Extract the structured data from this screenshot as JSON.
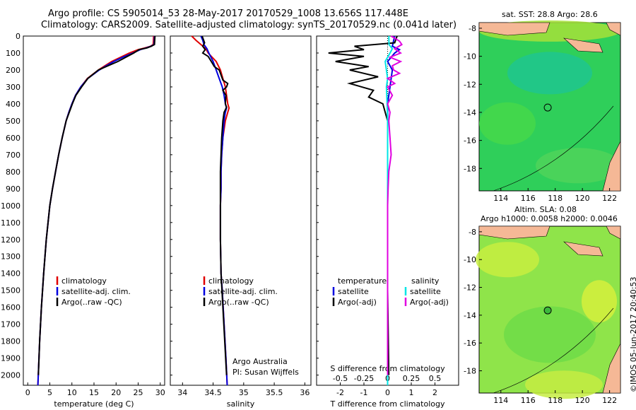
{
  "header": {
    "line1": "Argo profile: CS 5905014_53 28-May-2017 20170529_1008 13.656S 117.448E",
    "line2": "Climatology: CARS2009. Satellite-adjusted climatology: synTS_20170529.nc (0.041d later)"
  },
  "colors": {
    "climatology": "#e00000",
    "satellite": "#0000e0",
    "argo": "#000000",
    "sat_s": "#00e5e5",
    "argo_s": "#e000e0"
  },
  "depth_axis": {
    "ticks": [
      "0",
      "100",
      "200",
      "300",
      "400",
      "500",
      "600",
      "700",
      "800",
      "900",
      "1000",
      "1100",
      "1200",
      "1300",
      "1400",
      "1500",
      "1600",
      "1700",
      "1800",
      "1900",
      "2000"
    ],
    "ylim": [
      0,
      2060
    ]
  },
  "chart_data": [
    {
      "type": "line",
      "id": "temperature",
      "xlabel": "temperature (deg C)",
      "xlim": [
        -1,
        31
      ],
      "xticks": [
        0,
        5,
        10,
        15,
        20,
        25,
        30
      ],
      "xtick_labels": [
        "0",
        "5",
        "10",
        "15",
        "20",
        "25",
        "30"
      ],
      "legend": [
        "climatology",
        "satellite-adj. clim.",
        "Argo(..raw -QC)"
      ],
      "series": [
        {
          "name": "climatology",
          "depth": [
            0,
            50,
            60,
            70,
            80,
            100,
            125,
            150,
            175,
            200,
            250,
            300,
            350,
            400,
            450,
            500,
            600,
            700,
            800,
            900,
            1000,
            1200,
            1400,
            1600,
            1800,
            2060
          ],
          "values": [
            28.5,
            28.4,
            27.8,
            26.5,
            25.0,
            23.0,
            21.0,
            19.0,
            17.5,
            16.0,
            13.5,
            12.0,
            10.8,
            10.0,
            9.3,
            8.7,
            7.8,
            7.0,
            6.3,
            5.6,
            5.0,
            4.2,
            3.6,
            3.1,
            2.7,
            2.3
          ]
        },
        {
          "name": "satellite-adj. clim.",
          "depth": [
            0,
            50,
            60,
            70,
            80,
            100,
            125,
            150,
            175,
            200,
            250,
            300,
            350,
            400,
            450,
            500,
            600,
            700,
            800,
            900,
            1000,
            1200,
            1400,
            1600,
            1800,
            2060
          ],
          "values": [
            28.7,
            28.6,
            27.9,
            26.8,
            25.5,
            23.8,
            21.5,
            19.5,
            17.8,
            16.2,
            13.6,
            12.0,
            10.8,
            10.0,
            9.3,
            8.7,
            7.8,
            7.0,
            6.3,
            5.6,
            5.0,
            4.2,
            3.6,
            3.1,
            2.7,
            2.3
          ]
        },
        {
          "name": "Argo(..raw -QC)",
          "depth": [
            0,
            50,
            60,
            70,
            80,
            100,
            125,
            150,
            175,
            200,
            250,
            300,
            350,
            400,
            450,
            500,
            600,
            700,
            800,
            900,
            1000,
            1200,
            1400,
            1600,
            1800,
            2000
          ],
          "values": [
            28.8,
            28.7,
            28.0,
            27.0,
            25.2,
            24.0,
            22.2,
            20.4,
            18.2,
            16.0,
            13.6,
            12.2,
            10.9,
            10.1,
            9.4,
            8.7,
            7.8,
            7.0,
            6.3,
            5.6,
            5.0,
            4.2,
            3.6,
            3.1,
            2.7,
            2.4
          ]
        }
      ]
    },
    {
      "type": "line",
      "id": "salinity",
      "xlabel": "salinity",
      "xlim": [
        33.8,
        36.1
      ],
      "xticks": [
        34,
        34.5,
        35,
        35.5,
        36
      ],
      "xtick_labels": [
        "34",
        "34.5",
        "35",
        "35.5",
        "36"
      ],
      "legend": [
        "climatology",
        "satellite-adj. clim.",
        "Argo(..raw -QC)"
      ],
      "annotation": [
        "Argo Australia",
        "PI: Susan Wijffels"
      ],
      "series": [
        {
          "name": "climatology",
          "depth": [
            0,
            25,
            50,
            75,
            100,
            150,
            200,
            250,
            300,
            350,
            400,
            425,
            450,
            500,
            600,
            700,
            800,
            900,
            1000,
            1200,
            1400,
            1500,
            1700,
            1900,
            2060
          ],
          "values": [
            34.15,
            34.22,
            34.3,
            34.38,
            34.42,
            34.55,
            34.62,
            34.66,
            34.7,
            34.72,
            34.74,
            34.76,
            34.74,
            34.7,
            34.66,
            34.64,
            34.63,
            34.63,
            34.62,
            34.62,
            34.63,
            34.65,
            34.68,
            34.71,
            34.73
          ]
        },
        {
          "name": "satellite-adj. clim.",
          "depth": [
            0,
            25,
            50,
            75,
            100,
            150,
            200,
            250,
            300,
            350,
            400,
            425,
            450,
            500,
            600,
            700,
            800,
            900,
            1000,
            1200,
            1400,
            1500,
            1700,
            1900,
            2060
          ],
          "values": [
            34.3,
            34.33,
            34.35,
            34.4,
            34.43,
            34.5,
            34.55,
            34.6,
            34.65,
            34.68,
            34.7,
            34.72,
            34.7,
            34.68,
            34.66,
            34.64,
            34.63,
            34.63,
            34.62,
            34.62,
            34.63,
            34.65,
            34.68,
            34.71,
            34.73
          ]
        },
        {
          "name": "Argo(..raw -QC)",
          "depth": [
            0,
            40,
            60,
            80,
            100,
            120,
            150,
            180,
            200,
            230,
            260,
            280,
            300,
            320,
            350,
            400,
            420,
            450,
            500,
            600,
            700,
            800,
            900,
            1000,
            1200,
            1400,
            1600,
            1800,
            2000
          ],
          "values": [
            34.32,
            34.36,
            34.33,
            34.37,
            34.33,
            34.42,
            34.47,
            34.52,
            34.6,
            34.63,
            34.66,
            34.74,
            34.72,
            34.66,
            34.71,
            34.7,
            34.72,
            34.68,
            34.66,
            34.64,
            34.63,
            34.62,
            34.62,
            34.62,
            34.62,
            34.63,
            34.66,
            34.69,
            34.72
          ]
        }
      ]
    },
    {
      "type": "line",
      "id": "difference",
      "xlabel": "T difference from climatology",
      "top_label": "S difference from climatology",
      "xlim": [
        -3,
        3
      ],
      "xticks": [
        -2,
        -1,
        0,
        1,
        2
      ],
      "xtick_labels": [
        "-2",
        "-1",
        "0",
        "1",
        "2"
      ],
      "top_ticks": [
        -2,
        -1,
        0,
        1,
        2
      ],
      "top_tick_labels": [
        "-0.5",
        "-0.25",
        "0",
        "0.25",
        "0.5"
      ],
      "legend_headers": [
        "temperature",
        "salinity"
      ],
      "legend": [
        "satellite",
        "Argo(-adj)",
        "satellite",
        "Argo(-adj)"
      ],
      "series": [
        {
          "name": "T satellite",
          "depth": [
            0,
            60,
            80,
            100,
            150,
            200,
            300,
            400,
            500,
            600,
            800,
            1000,
            1500,
            2060
          ],
          "values": [
            0.3,
            0.2,
            0.5,
            0.3,
            0.0,
            0.2,
            0.1,
            0.0,
            0.0,
            0.0,
            0.0,
            0.0,
            0.0,
            0.0
          ]
        },
        {
          "name": "T Argo(-adj)",
          "depth": [
            0,
            40,
            60,
            80,
            100,
            120,
            150,
            180,
            200,
            240,
            280,
            320,
            360,
            400,
            450,
            500,
            600,
            700,
            800,
            1000,
            1500,
            2000
          ],
          "values": [
            0.4,
            0.3,
            -1.4,
            -1.0,
            -2.5,
            -1.0,
            -2.2,
            -0.8,
            -1.6,
            -0.4,
            -1.6,
            -0.6,
            -0.8,
            -0.2,
            -0.1,
            0.0,
            0.0,
            0.0,
            0.0,
            0.0,
            0.0,
            0.05
          ]
        },
        {
          "name": "S satellite",
          "depth": [
            0,
            50,
            75,
            100,
            150,
            200,
            250,
            300,
            400,
            500,
            600,
            800,
            1000,
            1500,
            2060
          ],
          "values": [
            0.05,
            0.06,
            0.2,
            0.1,
            -0.1,
            -0.05,
            0.0,
            -0.05,
            -0.02,
            0.0,
            0.0,
            0.0,
            0.0,
            0.0,
            0.0
          ]
        },
        {
          "name": "S Argo(-adj)",
          "depth": [
            0,
            30,
            50,
            75,
            100,
            125,
            150,
            175,
            200,
            220,
            250,
            280,
            300,
            350,
            400,
            450,
            500,
            600,
            700,
            800,
            900,
            1000,
            1200,
            2000
          ],
          "values": [
            0.15,
            0.5,
            0.6,
            0.3,
            0.55,
            0.1,
            0.55,
            0.2,
            0.25,
            0.5,
            0.0,
            0.3,
            0.0,
            0.2,
            0.0,
            0.1,
            0.05,
            0.1,
            0.15,
            0.05,
            0.02,
            0.0,
            0.0,
            0.0
          ]
        }
      ]
    }
  ],
  "map_top": {
    "title": "sat. SST: 28.8 Argo: 28.6",
    "lon_ticks": [
      "114",
      "116",
      "118",
      "120",
      "122"
    ],
    "lat_ticks": [
      "-8",
      "-10",
      "-12",
      "-14",
      "-16",
      "-18"
    ]
  },
  "map_bottom": {
    "title1": "Altim. SLA: 0.08",
    "title2": "Argo h1000: 0.0058 h2000: 0.0046",
    "lon_ticks": [
      "114",
      "116",
      "118",
      "120",
      "122"
    ],
    "lat_ticks": [
      "-8",
      "-10",
      "-12",
      "-14",
      "-16",
      "-18"
    ]
  },
  "footer": {
    "stamp": "©IMOS 05-Jun-2017 20:40:53"
  }
}
